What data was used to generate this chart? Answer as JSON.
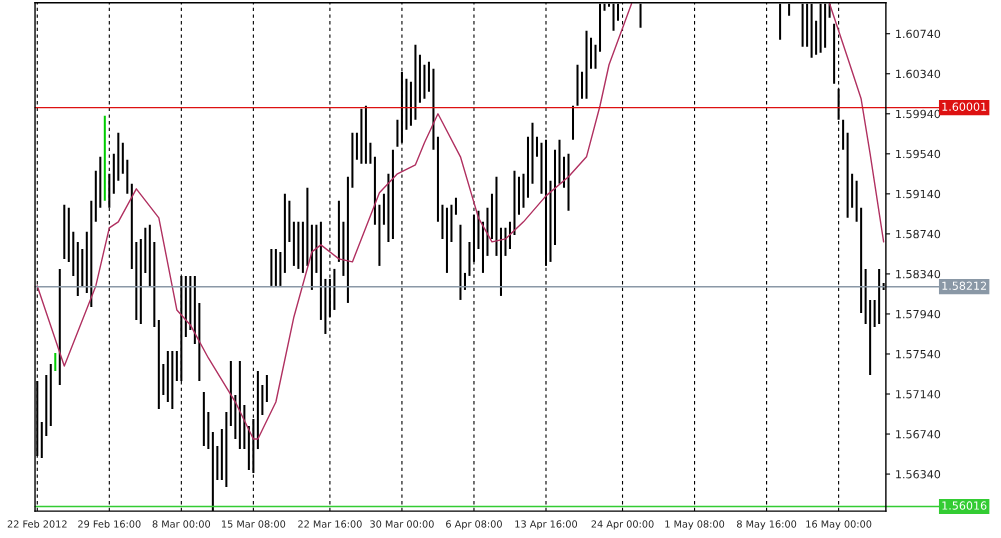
{
  "chart_data": {
    "type": "bar",
    "categories": [
      "22 Feb 2012",
      null,
      null,
      null,
      null,
      null,
      null,
      null,
      null,
      null,
      null,
      null,
      null,
      null,
      null,
      null,
      "29 Feb 16:00",
      null,
      null,
      null,
      null,
      null,
      null,
      null,
      null,
      null,
      null,
      null,
      null,
      null,
      null,
      null,
      "8 Mar 00:00",
      null,
      null,
      null,
      null,
      null,
      null,
      null,
      null,
      null,
      null,
      null,
      null,
      null,
      null,
      null,
      "15 Mar 08:00",
      null,
      null,
      null,
      null,
      null,
      null,
      null,
      null,
      null,
      null,
      null,
      null,
      null,
      null,
      null,
      null,
      "22 Mar 16:00",
      null,
      null,
      null,
      null,
      null,
      null,
      null,
      null,
      null,
      null,
      null,
      null,
      null,
      null,
      null,
      "30 Mar 00:00",
      null,
      null,
      null,
      null,
      null,
      null,
      null,
      null,
      null,
      null,
      null,
      null,
      null,
      null,
      null,
      "6 Apr 08:00",
      null,
      null,
      null,
      null,
      null,
      null,
      null,
      null,
      null,
      null,
      null,
      null,
      null,
      null,
      null,
      "13 Apr 16:00",
      null,
      null,
      null,
      null,
      null,
      null,
      null,
      null,
      null,
      null,
      null,
      null,
      null,
      null,
      null,
      null,
      "24 Apr 00:00",
      null,
      null,
      null,
      null,
      null,
      null,
      null,
      null,
      null,
      null,
      null,
      null,
      null,
      null,
      null,
      "1 May 08:00",
      null,
      null,
      null,
      null,
      null,
      null,
      null,
      null,
      null,
      null,
      null,
      null,
      null,
      null,
      null,
      "8 May 16:00",
      null,
      null,
      null,
      null,
      null,
      null,
      null,
      null,
      null,
      null,
      null,
      null,
      null,
      null,
      null,
      "16 May 00:00",
      null,
      null,
      null,
      null,
      null,
      null,
      null,
      null,
      null,
      null
    ],
    "series": [
      {
        "colors": [
          "#000000",
          "#000000",
          "#000000",
          "#000000",
          "#00cc00",
          "#000000",
          "#000000",
          "#000000",
          "#000000",
          "#000000",
          "#000000",
          "#000000",
          "#000000",
          "#000000",
          "#000000",
          "#00cc00",
          "#000000",
          "#000000",
          "#000000",
          "#000000",
          "#000000",
          "#000000",
          "#000000",
          "#000000",
          "#000000",
          "#000000",
          "#000000",
          "#000000",
          "#000000",
          "#000000",
          "#000000",
          "#000000",
          "#000000",
          "#000000",
          "#000000",
          "#000000",
          "#000000",
          "#000000",
          "#000000",
          "#000000",
          "#000000",
          "#000000",
          "#000000",
          "#000000",
          "#000000",
          "#000000",
          "#000000",
          "#000000",
          "#000000",
          "#000000",
          "#000000",
          "#000000",
          "#000000",
          "#000000",
          "#000000",
          "#000000",
          "#000000",
          "#000000",
          "#000000",
          "#000000",
          "#000000",
          "#000000",
          "#000000",
          "#000000",
          "#000000",
          "#000000",
          "#000000",
          "#000000",
          "#000000",
          "#000000",
          "#000000",
          "#000000",
          "#000000",
          "#000000",
          "#000000",
          "#000000",
          "#000000",
          "#000000",
          "#000000",
          "#000000",
          "#000000",
          "#000000",
          "#000000",
          "#000000",
          "#000000",
          "#000000",
          "#000000",
          "#000000",
          "#000000",
          "#000000",
          "#000000",
          "#000000",
          "#000000",
          "#000000",
          "#000000",
          "#000000",
          "#000000",
          "#000000",
          "#000000",
          "#000000",
          "#000000",
          "#000000",
          "#000000",
          "#000000",
          "#000000",
          "#000000",
          "#000000",
          "#000000",
          "#000000",
          "#000000",
          "#000000",
          "#000000",
          "#000000",
          "#000000",
          "#000000",
          "#000000",
          "#000000",
          "#000000",
          "#000000",
          "#000000",
          "#000000",
          "#000000",
          "#000000",
          "#000000",
          "#000000",
          "#000000",
          "#000000",
          "#000000",
          "#000000",
          "#000000",
          "#000000",
          "#000000",
          "#000000",
          "#000000",
          "#000000",
          "#000000",
          "#000000",
          "#000000",
          "#000000",
          "#000000",
          "#000000",
          "#000000",
          "#000000",
          "#000000",
          "#000000",
          "#000000",
          "#000000",
          "#000000",
          "#000000",
          "#000000",
          "#000000",
          "#000000",
          "#000000",
          "#000000",
          "#000000",
          "#000000",
          "#000000",
          "#000000",
          "#000000",
          "#000000",
          "#000000",
          "#000000",
          "#000000",
          "#000000",
          "#000000",
          "#000000",
          "#000000",
          "#000000",
          "#000000",
          "#000000",
          "#000000",
          "#000000",
          "#000000",
          "#000000",
          "#000000",
          "#000000",
          "#000000",
          "#000000",
          "#000000",
          "#000000",
          "#000000",
          "#000000",
          "#000000",
          "#000000",
          "#000000",
          "#000000",
          "#000000",
          "#000000",
          "#000000"
        ],
        "base": [
          1.5652,
          1.565,
          1.5672,
          1.5682,
          1.5737,
          1.5723,
          1.5849,
          1.5846,
          1.5832,
          1.5812,
          1.5822,
          1.5815,
          1.5801,
          1.5886,
          1.59,
          1.5907,
          1.59,
          1.5914,
          1.5927,
          1.5934,
          1.5914,
          1.5839,
          1.5788,
          1.5784,
          1.5835,
          1.5822,
          1.5781,
          1.5699,
          1.5713,
          1.5706,
          1.5699,
          1.5727,
          1.5727,
          1.5771,
          1.5778,
          1.5764,
          1.5727,
          1.5662,
          1.5659,
          1.5597,
          1.5628,
          1.5628,
          1.5621,
          1.5682,
          1.5669,
          1.5659,
          1.5659,
          1.5638,
          1.5635,
          1.5659,
          1.5693,
          1.5706,
          1.5822,
          1.5822,
          1.5822,
          1.5835,
          1.5866,
          1.5842,
          1.5839,
          1.5835,
          1.5842,
          1.5818,
          1.5835,
          1.5788,
          1.5774,
          1.5791,
          1.5798,
          1.5846,
          1.5832,
          1.5805,
          1.592,
          1.5948,
          1.5944,
          1.5944,
          1.5944,
          1.5883,
          1.5842,
          1.5883,
          1.5866,
          1.5869,
          1.5961,
          1.5965,
          1.5978,
          1.5982,
          1.5988,
          1.6005,
          1.6009,
          1.6016,
          1.5958,
          1.5886,
          1.5869,
          1.5835,
          1.5866,
          1.5893,
          1.5808,
          1.5818,
          1.5832,
          1.5846,
          1.5859,
          1.5835,
          1.5852,
          1.5869,
          1.5852,
          1.5812,
          1.5852,
          1.5859,
          1.5873,
          1.5893,
          1.59,
          1.591,
          1.5924,
          1.5951,
          1.5914,
          1.5842,
          1.5846,
          1.5863,
          1.5924,
          1.592,
          1.5897,
          1.5968,
          1.6002,
          1.6009,
          1.6009,
          1.6039,
          1.6039,
          1.6056,
          1.6097,
          1.6101,
          1.6077,
          1.6087,
          null,
          null,
          null,
          null,
          1.608,
          null,
          null,
          null,
          null,
          null,
          null,
          null,
          null,
          null,
          null,
          null,
          null,
          null,
          null,
          null,
          null,
          null,
          null,
          null,
          null,
          null,
          null,
          null,
          null,
          null,
          null,
          null,
          null,
          null,
          null,
          1.6068,
          null,
          1.6092,
          null,
          null,
          1.6061,
          1.6061,
          1.605,
          1.6053,
          1.6055,
          1.606,
          1.609,
          1.6024,
          1.5988,
          1.5958,
          1.589,
          1.59,
          1.5886,
          1.5795,
          1.5784,
          1.5733,
          1.5781,
          1.5784,
          1.5818
        ],
        "values": [
          0.0075,
          0.0036,
          0.0061,
          0.0062,
          0.0018,
          0.0116,
          0.0054,
          0.0054,
          0.0044,
          0.0054,
          0.0037,
          0.0061,
          0.0106,
          0.0051,
          0.0051,
          0.0085,
          0.0034,
          0.004,
          0.0048,
          0.0031,
          0.0034,
          0.0085,
          0.0078,
          0.0085,
          0.0045,
          0.0061,
          0.0085,
          0.0089,
          0.0031,
          0.0051,
          0.0058,
          0.003,
          0.0105,
          0.0061,
          0.0054,
          0.0068,
          0.0078,
          0.0054,
          0.0037,
          0.0079,
          0.0034,
          0.0051,
          0.0075,
          0.0065,
          0.0044,
          0.0088,
          0.0044,
          0.0044,
          0.0054,
          0.0078,
          0.003,
          0.0027,
          0.0037,
          0.0037,
          0.0034,
          0.0079,
          0.0041,
          0.0044,
          0.0047,
          0.0051,
          0.0078,
          0.0065,
          0.0048,
          0.0098,
          0.0055,
          0.0038,
          0.0041,
          0.0061,
          0.0054,
          0.0126,
          0.0055,
          0.0027,
          0.0055,
          0.0058,
          0.0021,
          0.0068,
          0.0061,
          0.0031,
          0.0068,
          0.0089,
          0.0027,
          0.0071,
          0.0051,
          0.0044,
          0.0075,
          0.0048,
          0.0034,
          0.003,
          0.0081,
          0.0085,
          0.0034,
          0.0065,
          0.0037,
          0.0017,
          0.0075,
          0.0017,
          0.0034,
          0.0047,
          0.0038,
          0.0051,
          0.0048,
          0.0045,
          0.0079,
          0.0068,
          0.0028,
          0.0027,
          0.0064,
          0.0038,
          0.0034,
          0.0061,
          0.0061,
          0.002,
          0.0051,
          0.0126,
          0.0081,
          0.0095,
          0.0044,
          0.0031,
          0.0057,
          0.0034,
          0.0041,
          0.0027,
          0.0068,
          0.0031,
          0.0024,
          0.0048,
          0.0007,
          0.0003,
          0.0027,
          0.0017,
          null,
          null,
          null,
          null,
          0.0024,
          null,
          null,
          null,
          null,
          null,
          null,
          null,
          null,
          null,
          null,
          null,
          null,
          null,
          null,
          null,
          null,
          null,
          null,
          null,
          null,
          null,
          null,
          null,
          null,
          null,
          null,
          null,
          null,
          null,
          null,
          0.0036,
          null,
          0.0012,
          null,
          null,
          0.0043,
          0.0043,
          0.0054,
          0.0034,
          0.0049,
          0.0044,
          0.0014,
          0.006,
          0.0031,
          0.003,
          0.0085,
          0.0034,
          0.0041,
          0.0105,
          0.0055,
          0.0075,
          0.0027,
          0.0055,
          0.0007
        ]
      },
      {
        "type": "line",
        "color": "#b03060",
        "values": [
          1.5822,
          null,
          null,
          null,
          null,
          null,
          1.5742,
          null,
          null,
          null,
          null,
          null,
          null,
          1.5822,
          null,
          null,
          1.588,
          null,
          1.5886,
          null,
          null,
          null,
          1.5919,
          null,
          null,
          null,
          null,
          1.589,
          null,
          null,
          null,
          1.5798,
          null,
          null,
          1.5783,
          null,
          null,
          null,
          1.575,
          null,
          null,
          null,
          null,
          null,
          1.5706,
          null,
          null,
          null,
          1.5669,
          1.5669,
          null,
          null,
          null,
          1.5706,
          null,
          null,
          null,
          1.5791,
          null,
          null,
          null,
          1.5856,
          null,
          1.5863,
          null,
          null,
          null,
          1.5849,
          null,
          null,
          1.5846,
          null,
          null,
          null,
          null,
          null,
          1.5915,
          null,
          null,
          null,
          1.5934,
          null,
          null,
          null,
          1.5943,
          null,
          1.5965,
          null,
          null,
          1.5994,
          null,
          null,
          null,
          null,
          1.5951,
          null,
          null,
          null,
          1.589,
          null,
          null,
          1.5866,
          null,
          null,
          1.5869,
          null,
          null,
          null,
          1.5886,
          null,
          null,
          null,
          null,
          1.5912,
          null,
          null,
          null,
          null,
          1.5931,
          null,
          null,
          null,
          1.5951,
          null,
          null,
          1.6002,
          null,
          1.6043,
          null,
          null,
          null,
          null,
          1.6104,
          null,
          null,
          null,
          null,
          null,
          null,
          null,
          null,
          null,
          null,
          null,
          null,
          null,
          null,
          null,
          null,
          null,
          null,
          null,
          null,
          null,
          null,
          null,
          null,
          null,
          null,
          null,
          null,
          null,
          null,
          null,
          null,
          null,
          null,
          null,
          null,
          null,
          null,
          null,
          null,
          null,
          null,
          null,
          null,
          null,
          null,
          null,
          null,
          null,
          null,
          null,
          null,
          null,
          null,
          null,
          null
        ]
      },
      {
        "type": "line",
        "color": "#b03060",
        "values": [
          null,
          null,
          null,
          null,
          null,
          null,
          null,
          null,
          null,
          null,
          null,
          null,
          null,
          null,
          null,
          null,
          null,
          null,
          null,
          null,
          null,
          null,
          null,
          null,
          null,
          null,
          null,
          null,
          null,
          null,
          null,
          null,
          null,
          null,
          null,
          null,
          null,
          null,
          null,
          null,
          null,
          null,
          null,
          null,
          null,
          null,
          null,
          null,
          null,
          null,
          null,
          null,
          null,
          null,
          null,
          null,
          null,
          null,
          null,
          null,
          null,
          null,
          null,
          null,
          null,
          null,
          null,
          null,
          null,
          null,
          null,
          null,
          null,
          null,
          null,
          null,
          null,
          null,
          null,
          null,
          null,
          null,
          null,
          null,
          null,
          null,
          null,
          null,
          null,
          null,
          null,
          null,
          null,
          null,
          null,
          null,
          null,
          null,
          null,
          null,
          null,
          null,
          null,
          null,
          null,
          null,
          null,
          null,
          null,
          null,
          null,
          null,
          null,
          null,
          null,
          null,
          null,
          null,
          null,
          null,
          null,
          null,
          null,
          null,
          null,
          null,
          null,
          null,
          null,
          null,
          null,
          null,
          null,
          null,
          null,
          null,
          null,
          null,
          null,
          null,
          null,
          null,
          null,
          null,
          null,
          null,
          null,
          null,
          null,
          null,
          null,
          null,
          null,
          null,
          null,
          null,
          null,
          null,
          null,
          null,
          null,
          null,
          null,
          null,
          null,
          null,
          null,
          null,
          null,
          null,
          null,
          null,
          null,
          null,
          null,
          null,
          1.6104,
          null,
          null,
          null,
          1.605,
          null,
          null,
          1.6009,
          null,
          1.5954,
          null,
          null,
          1.5866
        ]
      }
    ],
    "ylim": [
      1.5597,
      1.6105
    ],
    "yticks": [
      {
        "value": 1.5634,
        "label": "1.56340"
      },
      {
        "value": 1.5674,
        "label": "1.56740"
      },
      {
        "value": 1.5714,
        "label": "1.57140"
      },
      {
        "value": 1.5754,
        "label": "1.57540"
      },
      {
        "value": 1.5794,
        "label": "1.57940"
      },
      {
        "value": 1.5834,
        "label": "1.58340"
      },
      {
        "value": 1.5874,
        "label": "1.58740"
      },
      {
        "value": 1.5914,
        "label": "1.59140"
      },
      {
        "value": 1.5954,
        "label": "1.59540"
      },
      {
        "value": 1.5994,
        "label": "1.59940"
      },
      {
        "value": 1.6034,
        "label": "1.60340"
      },
      {
        "value": 1.6074,
        "label": "1.60740"
      }
    ],
    "ref_lines": [
      {
        "axis": "y",
        "value": 1.60001,
        "label": "1.60001",
        "color": "#dd1111"
      },
      {
        "axis": "y",
        "value": 1.58212,
        "label": "1.58212",
        "color": "#8a98a6"
      },
      {
        "axis": "y",
        "value": 1.56016,
        "label": "1.56016",
        "color": "#33cc33"
      }
    ],
    "grid": "x"
  }
}
